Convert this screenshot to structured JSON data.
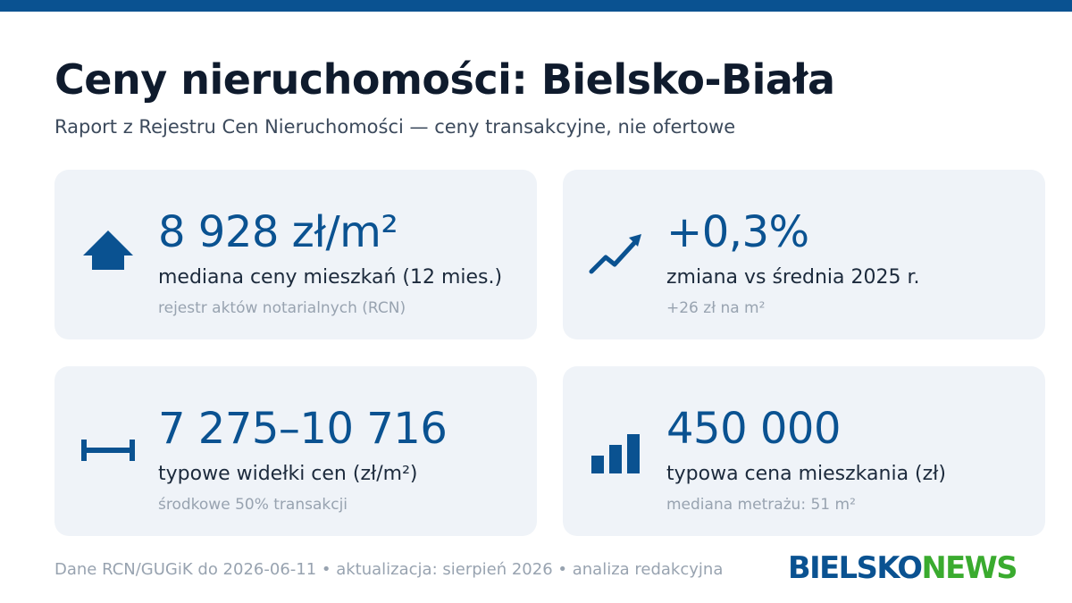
{
  "header": {
    "title": "Ceny nieruchomości: Bielsko-Biała",
    "subtitle": "Raport z Rejestru Cen Nieruchomości — ceny transakcyjne, nie ofertowe"
  },
  "cards": [
    {
      "icon": "house-icon",
      "value": "8 928 zł/m²",
      "label": "mediana ceny mieszkań (12 mies.)",
      "note": "rejestr aktów notarialnych (RCN)"
    },
    {
      "icon": "trend-up-icon",
      "value": "+0,3%",
      "label": "zmiana vs średnia 2025 r.",
      "note": "+26 zł na m²"
    },
    {
      "icon": "range-icon",
      "value": "7 275–10 716",
      "label": "typowe widełki cen (zł/m²)",
      "note": "środkowe 50% transakcji"
    },
    {
      "icon": "bar-chart-icon",
      "value": "450 000",
      "label": "typowa cena mieszkania (zł)",
      "note": "mediana metrażu: 51 m²"
    }
  ],
  "footer": {
    "text": "Dane RCN/GUGiK do 2026-06-11 • aktualizacja: sierpień 2026 • analiza redakcyjna"
  },
  "logo": {
    "part1": "BIELSKO",
    "part2": "NEWS"
  },
  "colors": {
    "accent": "#0a5291",
    "card_bg": "#eff3f8",
    "logo_blue": "#0a5291",
    "logo_green": "#3aab2f"
  }
}
